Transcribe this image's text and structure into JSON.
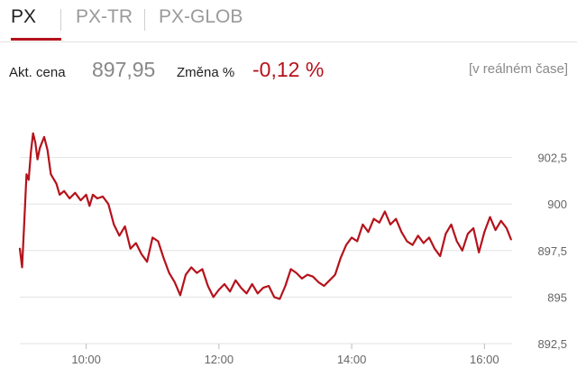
{
  "colors": {
    "accent": "#b5121b",
    "line": "#b5121b",
    "grid": "#e3e3e3",
    "axis_text": "#666666",
    "change_negative": "#b5121b",
    "price": "#888888"
  },
  "tabs": [
    {
      "label": "PX",
      "active": true
    },
    {
      "label": "PX-TR",
      "active": false
    },
    {
      "label": "PX-GLOB",
      "active": false
    }
  ],
  "info": {
    "price_label": "Akt. cena",
    "price_value": "897,95",
    "change_label": "Změna %",
    "change_value": "-0,12 %",
    "realtime_link": "[v reálném čase]"
  },
  "chart_data": {
    "type": "line",
    "title": "",
    "xlabel": "",
    "ylabel": "",
    "y_axis_position": "right",
    "grid": true,
    "ylim": [
      892.5,
      905
    ],
    "xlim": [
      "09:00",
      "16:25"
    ],
    "yticks": [
      892.5,
      895,
      897.5,
      900,
      902.5
    ],
    "ytick_labels": [
      "892,5",
      "895",
      "897,5",
      "900",
      "902,5"
    ],
    "xticks": [
      "10:00",
      "12:00",
      "14:00",
      "16:00"
    ],
    "series": [
      {
        "name": "",
        "x": [
          "09:00",
          "09:02",
          "09:04",
          "09:06",
          "09:08",
          "09:10",
          "09:12",
          "09:14",
          "09:16",
          "09:18",
          "09:20",
          "09:22",
          "09:25",
          "09:28",
          "09:30",
          "09:33",
          "09:36",
          "09:40",
          "09:45",
          "09:50",
          "09:55",
          "10:00",
          "10:03",
          "10:06",
          "10:10",
          "10:15",
          "10:20",
          "10:25",
          "10:30",
          "10:35",
          "10:40",
          "10:45",
          "10:50",
          "10:55",
          "11:00",
          "11:05",
          "11:10",
          "11:15",
          "11:20",
          "11:25",
          "11:30",
          "11:35",
          "11:40",
          "11:45",
          "11:50",
          "11:55",
          "12:00",
          "12:05",
          "12:10",
          "12:15",
          "12:20",
          "12:25",
          "12:30",
          "12:35",
          "12:40",
          "12:45",
          "12:50",
          "12:55",
          "13:00",
          "13:05",
          "13:10",
          "13:15",
          "13:20",
          "13:25",
          "13:30",
          "13:35",
          "13:40",
          "13:45",
          "13:50",
          "13:55",
          "14:00",
          "14:05",
          "14:10",
          "14:15",
          "14:20",
          "14:25",
          "14:30",
          "14:35",
          "14:40",
          "14:45",
          "14:50",
          "14:55",
          "15:00",
          "15:05",
          "15:10",
          "15:15",
          "15:20",
          "15:25",
          "15:30",
          "15:35",
          "15:40",
          "15:45",
          "15:50",
          "15:55",
          "16:00",
          "16:05",
          "16:10",
          "16:15",
          "16:20",
          "16:24"
        ],
        "values": [
          897.6,
          896.6,
          899.0,
          901.6,
          901.3,
          902.8,
          903.8,
          903.3,
          902.4,
          903.0,
          903.3,
          903.6,
          902.9,
          901.6,
          901.4,
          901.1,
          900.5,
          900.7,
          900.3,
          900.6,
          900.2,
          900.5,
          899.9,
          900.5,
          900.3,
          900.4,
          900.0,
          898.9,
          898.3,
          898.8,
          897.6,
          897.9,
          897.3,
          896.9,
          898.2,
          898.0,
          897.1,
          896.3,
          895.8,
          895.1,
          896.2,
          896.6,
          896.3,
          896.5,
          895.6,
          895.0,
          895.4,
          895.7,
          895.3,
          895.9,
          895.5,
          895.2,
          895.7,
          895.2,
          895.5,
          895.6,
          895.0,
          894.9,
          895.6,
          896.5,
          896.3,
          896.0,
          896.2,
          896.1,
          895.8,
          895.6,
          895.9,
          896.2,
          897.1,
          897.8,
          898.2,
          898.0,
          898.9,
          898.5,
          899.2,
          899.0,
          899.6,
          898.9,
          899.2,
          898.5,
          898.0,
          897.8,
          898.3,
          897.9,
          898.2,
          897.6,
          897.2,
          898.4,
          898.9,
          898.0,
          897.5,
          898.4,
          898.7,
          897.4,
          898.5,
          899.3,
          898.6,
          899.1,
          898.7,
          898.1
        ]
      }
    ]
  }
}
